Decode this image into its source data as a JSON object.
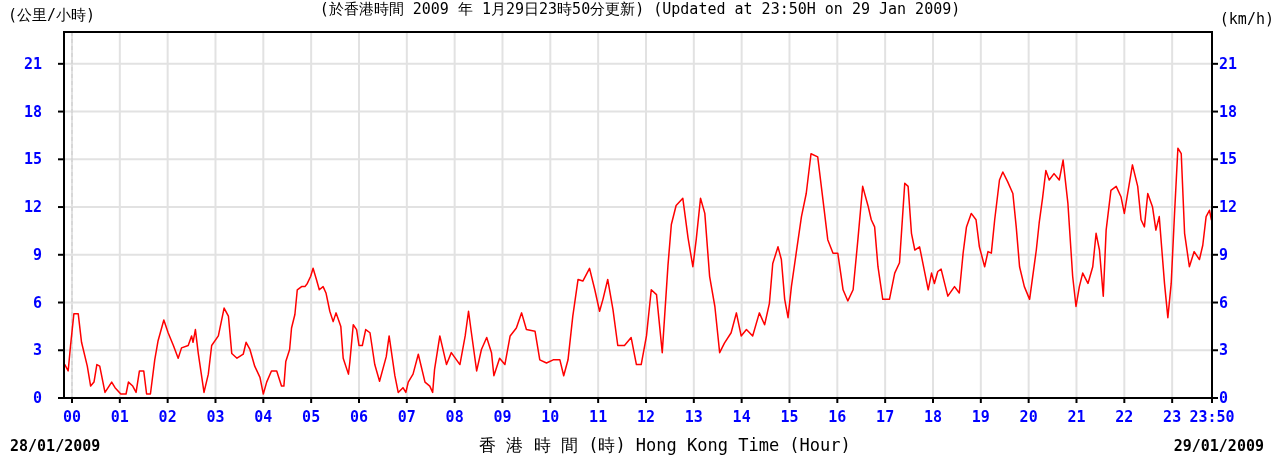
{
  "chart_data": {
    "type": "line",
    "title": "(於香港時間 2009 年 1月29日23時50分更新) (Updated at 23:50H on 29 Jan 2009)",
    "xlabel": "香 港 時 間 (時) Hong Kong Time (Hour)",
    "ylabel": "(公里/小時)",
    "y2label": "(km/h)",
    "annotations": [
      "28/01/2009",
      "29/01/2009"
    ],
    "x": [
      -0.15,
      -0.08,
      -0.03,
      0.04,
      0.13,
      0.2,
      0.32,
      0.39,
      0.46,
      0.52,
      0.58,
      0.69,
      0.83,
      0.9,
      1.02,
      1.13,
      1.18,
      1.27,
      1.34,
      1.41,
      1.5,
      1.56,
      1.64,
      1.73,
      1.8,
      1.92,
      2.01,
      2.12,
      2.22,
      2.29,
      2.43,
      2.5,
      2.53,
      2.58,
      2.64,
      2.76,
      2.85,
      2.92,
      3.06,
      3.18,
      3.27,
      3.34,
      3.45,
      3.58,
      3.64,
      3.72,
      3.82,
      3.93,
      4.0,
      4.07,
      4.17,
      4.28,
      4.38,
      4.43,
      4.47,
      4.55,
      4.59,
      4.66,
      4.71,
      4.8,
      4.87,
      4.92,
      4.99,
      5.04,
      5.11,
      5.17,
      5.25,
      5.31,
      5.39,
      5.46,
      5.52,
      5.62,
      5.67,
      5.78,
      5.81,
      5.88,
      5.95,
      6.0,
      6.07,
      6.14,
      6.23,
      6.33,
      6.43,
      6.57,
      6.63,
      6.75,
      6.82,
      6.92,
      6.98,
      7.03,
      7.13,
      7.24,
      7.38,
      7.48,
      7.54,
      7.58,
      7.69,
      7.83,
      7.93,
      8.11,
      8.22,
      8.29,
      8.35,
      8.46,
      8.56,
      8.67,
      8.77,
      8.82,
      8.94,
      9.05,
      9.16,
      9.29,
      9.4,
      9.5,
      9.68,
      9.78,
      9.92,
      10.06,
      10.2,
      10.28,
      10.37,
      10.47,
      10.58,
      10.68,
      10.82,
      10.93,
      11.03,
      11.1,
      11.2,
      11.31,
      11.41,
      11.55,
      11.69,
      11.8,
      11.9,
      12.01,
      12.11,
      12.22,
      12.34,
      12.46,
      12.53,
      12.63,
      12.77,
      12.88,
      12.98,
      13.05,
      13.14,
      13.23,
      13.33,
      13.44,
      13.54,
      13.64,
      13.78,
      13.89,
      13.99,
      14.1,
      14.23,
      14.37,
      14.48,
      14.58,
      14.65,
      14.76,
      14.83,
      14.9,
      14.97,
      15.04,
      15.14,
      15.25,
      15.35,
      15.45,
      15.59,
      15.7,
      15.8,
      15.91,
      16.01,
      16.08,
      16.12,
      16.22,
      16.33,
      16.43,
      16.53,
      16.64,
      16.71,
      16.78,
      16.85,
      16.95,
      17.09,
      17.2,
      17.3,
      17.41,
      17.48,
      17.55,
      17.62,
      17.72,
      17.83,
      17.9,
      17.97,
      18.03,
      18.1,
      18.17,
      18.31,
      18.45,
      18.55,
      18.63,
      18.7,
      18.8,
      18.9,
      18.97,
      19.08,
      19.15,
      19.22,
      19.29,
      19.39,
      19.46,
      19.56,
      19.67,
      19.74,
      19.81,
      19.91,
      20.02,
      20.16,
      20.22,
      20.29,
      20.36,
      20.43,
      20.53,
      20.64,
      20.72,
      20.82,
      20.92,
      20.99,
      21.06,
      21.13,
      21.24,
      21.34,
      21.41,
      21.48,
      21.56,
      21.62,
      21.72,
      21.83,
      21.93,
      22.0,
      22.1,
      22.17,
      22.28,
      22.35,
      22.42,
      22.49,
      22.59,
      22.66,
      22.73,
      22.84,
      22.91,
      22.98,
      23.05,
      23.12,
      23.19,
      23.26,
      23.36,
      23.46,
      23.57,
      23.64,
      23.71,
      23.78,
      23.82
    ],
    "series": [
      {
        "color": "#ff0000",
        "values": [
          2.1,
          1.7,
          3.3,
          5.3,
          5.3,
          3.5,
          2.0,
          0.75,
          1.0,
          2.1,
          2.0,
          0.35,
          1.0,
          0.65,
          0.25,
          0.25,
          1.0,
          0.75,
          0.35,
          1.7,
          1.7,
          0.25,
          0.25,
          2.4,
          3.6,
          4.9,
          4.1,
          3.3,
          2.5,
          3.15,
          3.3,
          3.9,
          3.5,
          4.3,
          2.8,
          0.35,
          1.5,
          3.3,
          3.9,
          5.65,
          5.15,
          2.8,
          2.5,
          2.75,
          3.5,
          3.05,
          2.0,
          1.3,
          0.25,
          1.0,
          1.7,
          1.7,
          0.75,
          0.75,
          2.3,
          3.05,
          4.4,
          5.25,
          6.8,
          7.0,
          7.0,
          7.2,
          7.65,
          8.15,
          7.45,
          6.8,
          7.0,
          6.6,
          5.45,
          4.8,
          5.35,
          4.5,
          2.5,
          1.5,
          2.3,
          4.6,
          4.3,
          3.3,
          3.3,
          4.3,
          4.1,
          2.1,
          1.05,
          2.6,
          3.9,
          1.4,
          0.35,
          0.65,
          0.35,
          1.0,
          1.5,
          2.75,
          1.0,
          0.75,
          0.35,
          1.8,
          3.9,
          2.1,
          2.85,
          2.1,
          3.9,
          5.45,
          4.1,
          1.7,
          3.05,
          3.8,
          2.85,
          1.4,
          2.5,
          2.1,
          3.9,
          4.4,
          5.35,
          4.3,
          4.2,
          2.4,
          2.2,
          2.4,
          2.4,
          1.4,
          2.4,
          5.15,
          7.45,
          7.35,
          8.15,
          6.8,
          5.45,
          6.2,
          7.45,
          5.55,
          3.3,
          3.3,
          3.8,
          2.1,
          2.1,
          3.9,
          6.8,
          6.5,
          2.85,
          8.35,
          10.9,
          12.1,
          12.55,
          10.05,
          8.25,
          9.95,
          12.55,
          11.6,
          7.65,
          5.75,
          2.85,
          3.45,
          4.1,
          5.35,
          3.9,
          4.3,
          3.9,
          5.35,
          4.6,
          5.95,
          8.45,
          9.5,
          8.7,
          6.2,
          5.05,
          7.0,
          9.1,
          11.4,
          12.85,
          15.35,
          15.15,
          12.45,
          9.95,
          9.1,
          9.1,
          7.65,
          6.8,
          6.1,
          6.8,
          9.95,
          13.3,
          12.1,
          11.2,
          10.75,
          8.25,
          6.2,
          6.2,
          7.85,
          8.5,
          13.5,
          13.3,
          10.35,
          9.3,
          9.5,
          7.85,
          6.8,
          7.85,
          7.2,
          7.95,
          8.1,
          6.4,
          7.0,
          6.6,
          9.1,
          10.75,
          11.6,
          11.2,
          9.5,
          8.25,
          9.2,
          9.1,
          11.2,
          13.7,
          14.2,
          13.6,
          12.85,
          10.75,
          8.25,
          7.0,
          6.2,
          9.3,
          11.0,
          12.55,
          14.3,
          13.7,
          14.1,
          13.7,
          14.95,
          12.25,
          7.65,
          5.75,
          7.0,
          7.85,
          7.2,
          8.25,
          10.35,
          9.3,
          6.4,
          10.55,
          13.05,
          13.3,
          12.65,
          11.6,
          13.4,
          14.65,
          13.3,
          11.2,
          10.75,
          12.85,
          12.0,
          10.55,
          11.4,
          7.2,
          5.05,
          7.2,
          11.6,
          15.7,
          15.35,
          10.35,
          8.25,
          9.2,
          8.7,
          9.6,
          11.4,
          11.8,
          11.2
        ]
      }
    ],
    "xlim": [
      -0.167,
      23.833
    ],
    "xticks": [
      {
        "value": 0,
        "label": "00"
      },
      {
        "value": 1,
        "label": "01"
      },
      {
        "value": 2,
        "label": "02"
      },
      {
        "value": 3,
        "label": "03"
      },
      {
        "value": 4,
        "label": "04"
      },
      {
        "value": 5,
        "label": "05"
      },
      {
        "value": 6,
        "label": "06"
      },
      {
        "value": 7,
        "label": "07"
      },
      {
        "value": 8,
        "label": "08"
      },
      {
        "value": 9,
        "label": "09"
      },
      {
        "value": 10,
        "label": "10"
      },
      {
        "value": 11,
        "label": "11"
      },
      {
        "value": 12,
        "label": "12"
      },
      {
        "value": 13,
        "label": "13"
      },
      {
        "value": 14,
        "label": "14"
      },
      {
        "value": 15,
        "label": "15"
      },
      {
        "value": 16,
        "label": "16"
      },
      {
        "value": 17,
        "label": "17"
      },
      {
        "value": 18,
        "label": "18"
      },
      {
        "value": 19,
        "label": "19"
      },
      {
        "value": 20,
        "label": "20"
      },
      {
        "value": 21,
        "label": "21"
      },
      {
        "value": 22,
        "label": "22"
      },
      {
        "value": 23,
        "label": "23"
      },
      {
        "value": 23.833,
        "label": "23:50"
      }
    ],
    "ylim": [
      0,
      23
    ],
    "yticks": [
      0,
      3,
      6,
      9,
      12,
      15,
      18,
      21
    ],
    "y2lim": [
      0,
      23
    ],
    "y2ticks": [
      0,
      3,
      6,
      9,
      12,
      15,
      18,
      21
    ],
    "ref_lines": [
      {
        "axis": "x",
        "value": 0,
        "color": "#cccccc",
        "line_style": "dashed"
      }
    ],
    "grid": true,
    "marker": "none",
    "line_style": "solid"
  }
}
